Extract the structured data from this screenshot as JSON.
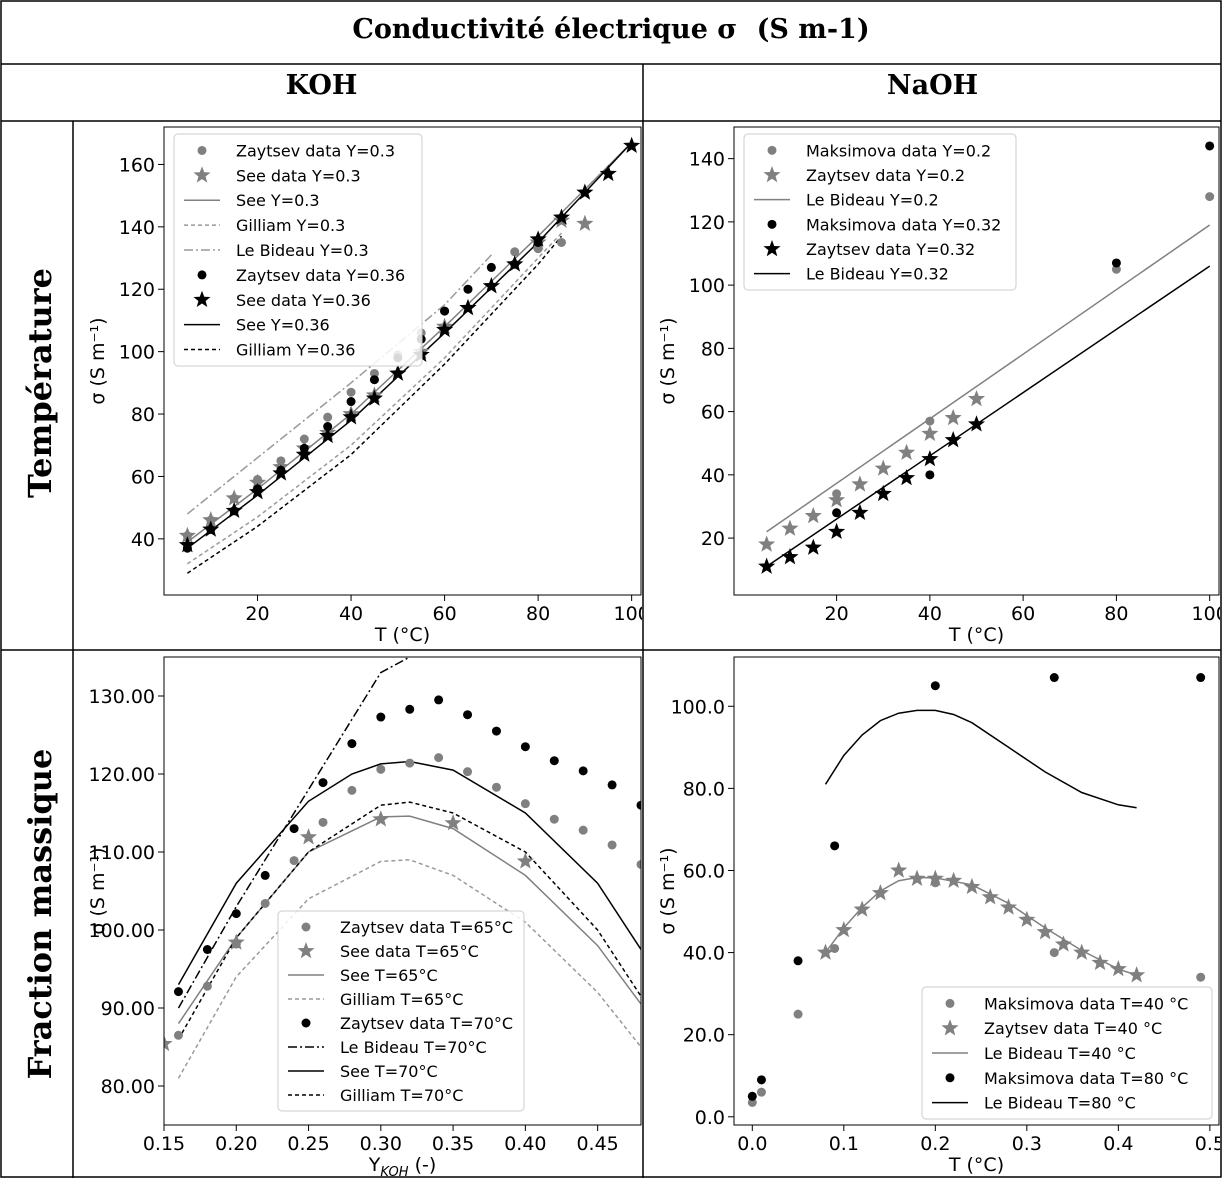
{
  "table": {
    "title": "Conductivité électrique σ",
    "title_unit": "(S m-1)",
    "col_headers": [
      "KOH",
      "NaOH"
    ],
    "row_headers": [
      "Température",
      "Fraction massique"
    ]
  },
  "colors": {
    "grey": "#808080",
    "black": "#000000",
    "dashgrey": "#9a9a9a"
  },
  "chart_data": [
    {
      "id": "koh-temp",
      "type": "scatter",
      "xlabel": "T (°C)",
      "ylabel": "σ (S m⁻¹)",
      "xlim": [
        0,
        102
      ],
      "ylim": [
        22,
        172
      ],
      "xticks": [
        20,
        40,
        60,
        80,
        100
      ],
      "yticks": [
        40,
        60,
        80,
        100,
        120,
        140,
        160
      ],
      "legend_position": "upper-left",
      "series": [
        {
          "name": "Zaytsev data Y=0.3",
          "kind": "marker",
          "marker": "circle",
          "color": "grey",
          "x": [
            5,
            10,
            15,
            20,
            25,
            30,
            35,
            40,
            45,
            50,
            55,
            60,
            65,
            70,
            75,
            80,
            85
          ],
          "y": [
            41,
            46,
            53,
            59,
            65,
            72,
            79,
            87,
            93,
            99,
            106,
            113,
            120,
            127,
            132,
            133,
            135
          ]
        },
        {
          "name": "See data Y=0.3",
          "kind": "marker",
          "marker": "star",
          "color": "grey",
          "x": [
            5,
            10,
            15,
            20,
            25,
            30,
            35,
            40,
            45,
            50,
            55,
            60,
            65,
            70,
            75,
            80,
            85,
            90
          ],
          "y": [
            41,
            46,
            53,
            58,
            63,
            69,
            74,
            80,
            86,
            93,
            100,
            108,
            114,
            121,
            128,
            135,
            142,
            141
          ]
        },
        {
          "name": "See Y=0.3",
          "kind": "line",
          "dash": "",
          "color": "grey",
          "x": [
            5,
            20,
            40,
            60,
            80,
            90,
            100
          ],
          "y": [
            39,
            56,
            80,
            108,
            137,
            152,
            167
          ]
        },
        {
          "name": "Gilliam Y=0.3",
          "kind": "line",
          "dash": "4,3",
          "color": "dashgrey",
          "x": [
            5,
            20,
            40,
            60,
            80,
            85
          ],
          "y": [
            32,
            47,
            70,
            98,
            130,
            138
          ]
        },
        {
          "name": "Le Bideau Y=0.3",
          "kind": "line",
          "dash": "9,3,2,3",
          "color": "dashgrey",
          "x": [
            5,
            20,
            40,
            60,
            70
          ],
          "y": [
            48,
            66,
            90,
            115,
            131
          ]
        },
        {
          "name": "Zaytsev data Y=0.36",
          "kind": "marker",
          "marker": "circle",
          "color": "black",
          "x": [
            5,
            10,
            15,
            20,
            25,
            30,
            35,
            40,
            45,
            50,
            55,
            60,
            65,
            70,
            75,
            80
          ],
          "y": [
            37,
            43,
            49,
            56,
            62,
            69,
            76,
            84,
            91,
            98,
            104,
            113,
            120,
            127,
            128,
            135
          ]
        },
        {
          "name": "See data Y=0.36",
          "kind": "marker",
          "marker": "star",
          "color": "black",
          "x": [
            5,
            10,
            15,
            20,
            25,
            30,
            35,
            40,
            45,
            50,
            55,
            60,
            65,
            70,
            75,
            80,
            85,
            90,
            95,
            100
          ],
          "y": [
            38,
            43,
            49,
            55,
            61,
            67,
            73,
            79,
            85,
            93,
            99,
            107,
            114,
            121,
            128,
            136,
            143,
            151,
            157,
            166
          ]
        },
        {
          "name": "See Y=0.36",
          "kind": "line",
          "dash": "",
          "color": "black",
          "x": [
            5,
            20,
            40,
            60,
            80,
            90,
            100
          ],
          "y": [
            37,
            54,
            78,
            106,
            135,
            151,
            167
          ]
        },
        {
          "name": "Gilliam Y=0.36",
          "kind": "line",
          "dash": "4,3",
          "color": "black",
          "x": [
            5,
            20,
            40,
            60,
            80,
            85
          ],
          "y": [
            29,
            44,
            67,
            96,
            128,
            137
          ]
        }
      ]
    },
    {
      "id": "naoh-temp",
      "type": "scatter",
      "xlabel": "T (°C)",
      "ylabel": "σ (S m⁻¹)",
      "xlim": [
        -2,
        102
      ],
      "ylim": [
        2,
        150
      ],
      "xticks": [
        20,
        40,
        60,
        80,
        100
      ],
      "yticks": [
        20,
        40,
        60,
        80,
        100,
        120,
        140
      ],
      "legend_position": "upper-left",
      "series": [
        {
          "name": "Maksimova data Y=0.2",
          "kind": "marker",
          "marker": "circle",
          "color": "grey",
          "x": [
            20,
            40,
            80,
            100
          ],
          "y": [
            34,
            57,
            105,
            128
          ]
        },
        {
          "name": "Zaytsev data Y=0.2",
          "kind": "marker",
          "marker": "star",
          "color": "grey",
          "x": [
            5,
            10,
            15,
            20,
            25,
            30,
            35,
            40,
            45,
            50
          ],
          "y": [
            18,
            23,
            27,
            32,
            37,
            42,
            47,
            53,
            58,
            64
          ]
        },
        {
          "name": "Le Bideau Y=0.2",
          "kind": "line",
          "dash": "",
          "color": "grey",
          "x": [
            5,
            100
          ],
          "y": [
            22,
            119
          ]
        },
        {
          "name": "Maksimova data Y=0.32",
          "kind": "marker",
          "marker": "circle",
          "color": "black",
          "x": [
            20,
            40,
            80,
            100
          ],
          "y": [
            28,
            40,
            107,
            144
          ]
        },
        {
          "name": "Zaytsev data Y=0.32",
          "kind": "marker",
          "marker": "star",
          "color": "black",
          "x": [
            5,
            10,
            15,
            20,
            25,
            30,
            35,
            40,
            45,
            50
          ],
          "y": [
            11,
            14,
            17,
            22,
            28,
            34,
            39,
            45,
            51,
            56
          ]
        },
        {
          "name": "Le Bideau Y=0.32",
          "kind": "line",
          "dash": "",
          "color": "black",
          "x": [
            5,
            100
          ],
          "y": [
            11,
            106
          ]
        }
      ]
    },
    {
      "id": "koh-fraction",
      "type": "scatter",
      "xlabel": "Y",
      "xlabel_sub": "KOH",
      "xlabel_suffix": " (-)",
      "ylabel": "σ (S m⁻¹)",
      "xlim": [
        0.15,
        0.48
      ],
      "ylim": [
        75,
        135
      ],
      "xticks": [
        0.15,
        0.2,
        0.25,
        0.3,
        0.35,
        0.4,
        0.45
      ],
      "yticks": [
        80,
        90,
        100,
        110,
        120,
        130
      ],
      "legend_position": "lower-center",
      "series": [
        {
          "name": "Zaytsev data T=65°C",
          "kind": "marker",
          "marker": "circle",
          "color": "grey",
          "x": [
            0.16,
            0.18,
            0.2,
            0.22,
            0.24,
            0.26,
            0.28,
            0.3,
            0.32,
            0.34,
            0.36,
            0.38,
            0.4,
            0.42,
            0.44,
            0.46,
            0.48
          ],
          "y": [
            86.5,
            92.8,
            98.2,
            103.4,
            108.9,
            113.8,
            117.9,
            120.6,
            121.4,
            122.1,
            120.3,
            118.3,
            116.2,
            114.2,
            112.8,
            110.9,
            108.4
          ]
        },
        {
          "name": "See data T=65°C",
          "kind": "marker",
          "marker": "star",
          "color": "grey",
          "x": [
            0.15,
            0.2,
            0.25,
            0.3,
            0.35,
            0.4
          ],
          "y": [
            85.4,
            98.4,
            111.9,
            114.2,
            113.7,
            108.8
          ]
        },
        {
          "name": "See T=65°C",
          "kind": "line",
          "dash": "",
          "color": "grey",
          "x": [
            0.16,
            0.2,
            0.25,
            0.3,
            0.32,
            0.35,
            0.4,
            0.45,
            0.48
          ],
          "y": [
            88,
            99,
            110,
            114.5,
            114.6,
            113,
            107,
            98,
            90.5
          ]
        },
        {
          "name": "Gilliam T=65°C",
          "kind": "line",
          "dash": "4,3",
          "color": "dashgrey",
          "x": [
            0.16,
            0.2,
            0.25,
            0.3,
            0.32,
            0.35,
            0.4,
            0.45,
            0.48
          ],
          "y": [
            81,
            94,
            104,
            108.8,
            109,
            107,
            101,
            92,
            85
          ]
        },
        {
          "name": "Zaytsev data T=70°C",
          "kind": "marker",
          "marker": "circle",
          "color": "black",
          "x": [
            0.16,
            0.18,
            0.2,
            0.22,
            0.24,
            0.26,
            0.28,
            0.3,
            0.32,
            0.34,
            0.36,
            0.38,
            0.4,
            0.42,
            0.44,
            0.46,
            0.48
          ],
          "y": [
            92.1,
            97.5,
            102.1,
            107,
            113,
            118.9,
            123.9,
            127.3,
            128.3,
            129.5,
            127.6,
            125.5,
            123.5,
            121.7,
            120.4,
            118.6,
            116
          ]
        },
        {
          "name": "Le Bideau T=70°C",
          "kind": "line",
          "dash": "9,3,2,3",
          "color": "black",
          "x": [
            0.16,
            0.2,
            0.25,
            0.28,
            0.3,
            0.32
          ],
          "y": [
            90,
            103,
            118,
            127,
            133,
            135
          ]
        },
        {
          "name": "See T=70°C",
          "kind": "line",
          "dash": "",
          "color": "black",
          "x": [
            0.16,
            0.2,
            0.25,
            0.28,
            0.3,
            0.32,
            0.35,
            0.4,
            0.45,
            0.48
          ],
          "y": [
            93,
            106,
            116.5,
            120,
            121.3,
            121.6,
            120.5,
            115,
            106,
            97.5
          ]
        },
        {
          "name": "Gilliam T=70°C",
          "kind": "line",
          "dash": "4,3",
          "color": "black",
          "x": [
            0.16,
            0.2,
            0.25,
            0.3,
            0.32,
            0.35,
            0.4,
            0.45,
            0.48
          ],
          "y": [
            86,
            99,
            110,
            116,
            116.4,
            115,
            110,
            100,
            91.5
          ]
        }
      ]
    },
    {
      "id": "naoh-fraction",
      "type": "scatter",
      "xlabel": "T (°C)",
      "ylabel": "σ (S m⁻¹)",
      "xlim": [
        -0.02,
        0.51
      ],
      "ylim": [
        -2,
        112
      ],
      "xticks": [
        0.0,
        0.1,
        0.2,
        0.3,
        0.4,
        0.5
      ],
      "yticks": [
        0,
        20,
        40,
        60,
        80,
        100
      ],
      "legend_position": "lower-right",
      "series": [
        {
          "name": "Maksimova data T=40 °C",
          "kind": "marker",
          "marker": "circle",
          "color": "grey",
          "x": [
            0.0,
            0.01,
            0.05,
            0.09,
            0.2,
            0.33,
            0.49
          ],
          "y": [
            3.5,
            6,
            25,
            41,
            57,
            40,
            34
          ]
        },
        {
          "name": "Zaytsev data T=40 °C",
          "kind": "marker",
          "marker": "star",
          "color": "grey",
          "x": [
            0.08,
            0.1,
            0.12,
            0.14,
            0.16,
            0.18,
            0.2,
            0.22,
            0.24,
            0.26,
            0.28,
            0.3,
            0.32,
            0.34,
            0.36,
            0.38,
            0.4,
            0.42
          ],
          "y": [
            40,
            45.5,
            50.5,
            54.5,
            60,
            58,
            58,
            57.5,
            56,
            53.5,
            51,
            48,
            45,
            42,
            40,
            37.5,
            36,
            34.5
          ]
        },
        {
          "name": "Le Bideau T=40 °C",
          "kind": "line",
          "dash": "",
          "color": "grey",
          "x": [
            0.08,
            0.1,
            0.12,
            0.14,
            0.16,
            0.18,
            0.2,
            0.24,
            0.28,
            0.32,
            0.36,
            0.4,
            0.42
          ],
          "y": [
            40,
            46,
            51,
            55,
            57.5,
            58.3,
            58.2,
            56.5,
            52,
            46,
            40.5,
            36,
            34.5
          ]
        },
        {
          "name": "Maksimova data T=80 °C",
          "kind": "marker",
          "marker": "circle",
          "color": "black",
          "x": [
            0.0,
            0.01,
            0.05,
            0.09,
            0.2,
            0.33,
            0.49
          ],
          "y": [
            5,
            9,
            38,
            66,
            105,
            107,
            107
          ]
        },
        {
          "name": "Le Bideau T=80 °C",
          "kind": "line",
          "dash": "",
          "color": "black",
          "x": [
            0.08,
            0.1,
            0.12,
            0.14,
            0.16,
            0.18,
            0.2,
            0.22,
            0.24,
            0.28,
            0.32,
            0.36,
            0.4,
            0.42
          ],
          "y": [
            81,
            88,
            93,
            96.5,
            98.3,
            99,
            99,
            98,
            96,
            90,
            84,
            79,
            76,
            75.3
          ]
        }
      ]
    }
  ]
}
